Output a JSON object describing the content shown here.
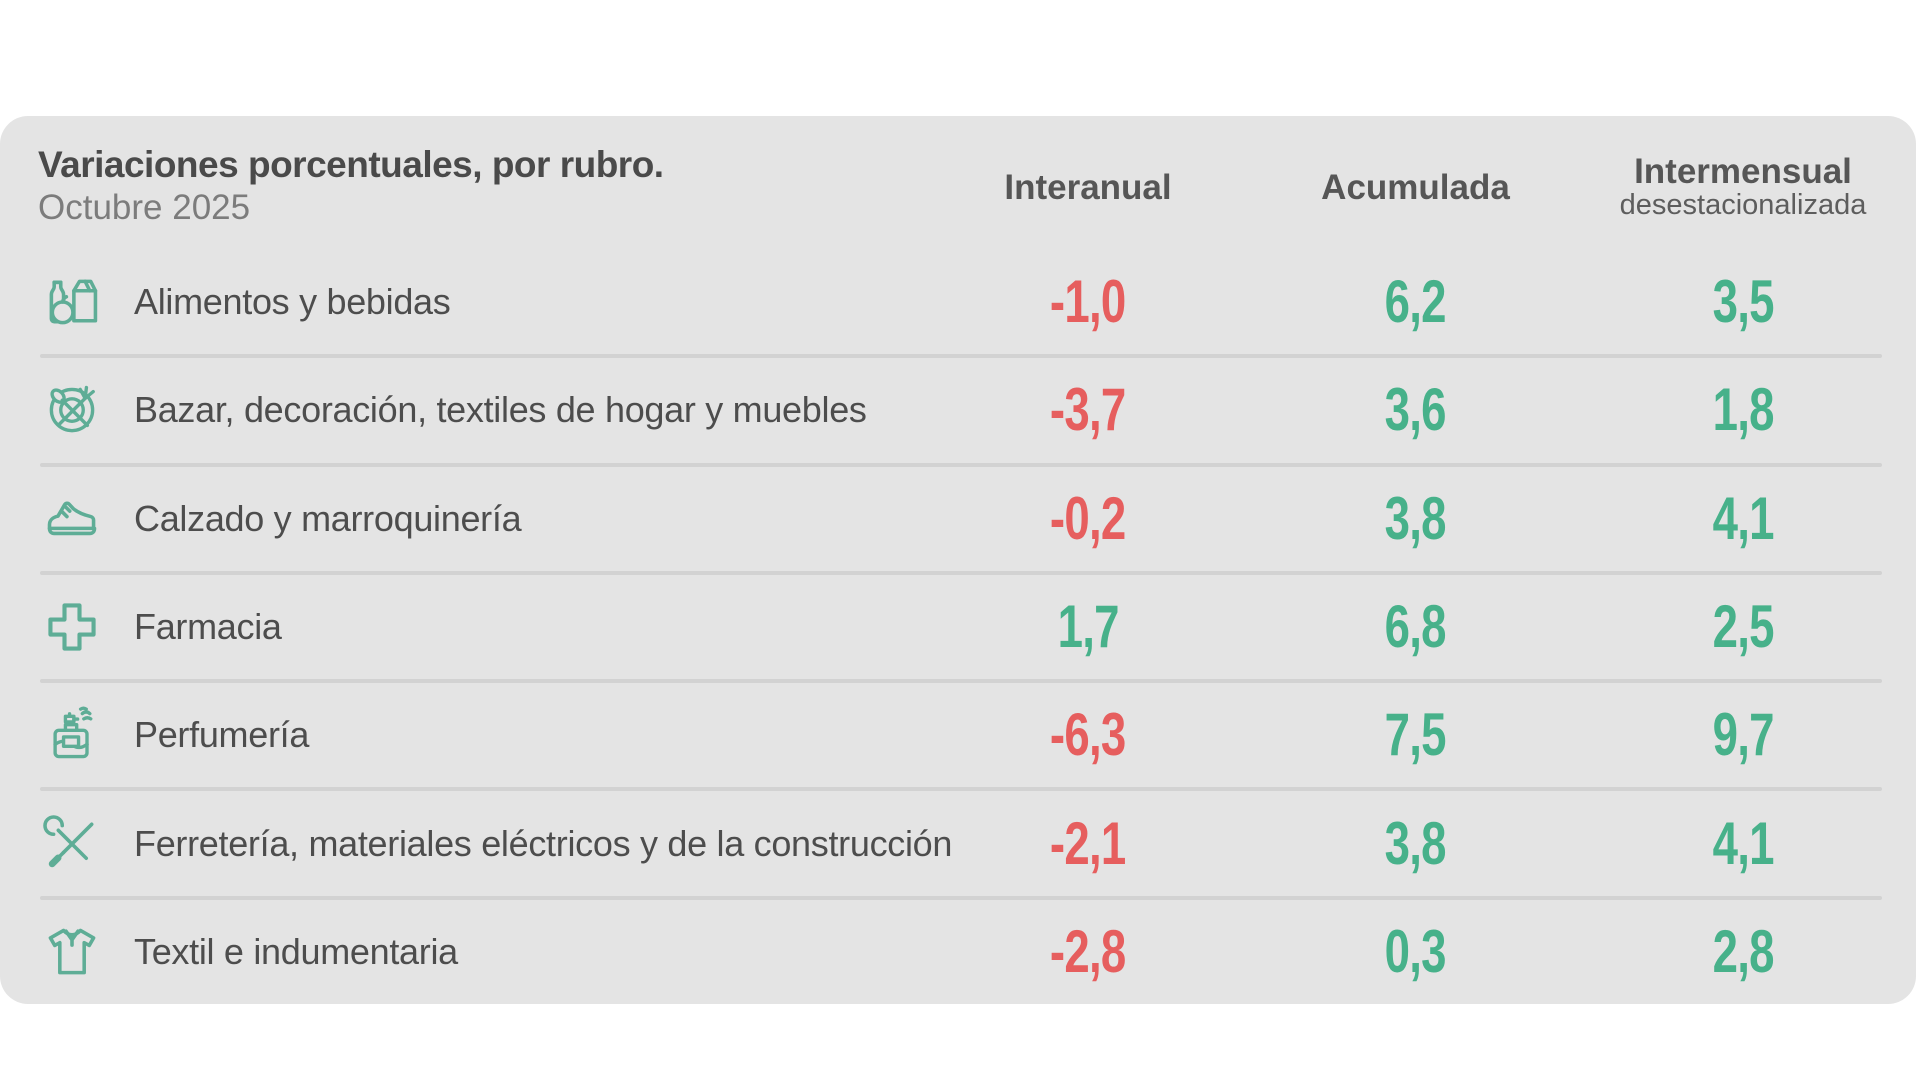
{
  "header": {
    "title": "Variaciones porcentuales, por rubro.",
    "subtitle": "Octubre 2025",
    "columns": [
      {
        "key": "interanual",
        "label": "Interanual",
        "sublabel": ""
      },
      {
        "key": "acumulada",
        "label": "Acumulada",
        "sublabel": ""
      },
      {
        "key": "intermensual",
        "label": "Intermensual",
        "sublabel": "desestacionalizada"
      }
    ]
  },
  "colors": {
    "card_background": "#e4e4e4",
    "positive_value": "#47b18a",
    "negative_value": "#e65e5e",
    "icon_green": "#5ead96",
    "title_text": "#4a4a4a",
    "muted_text": "#7c7c7c",
    "header_text": "#565656",
    "label_text": "#4d4d4d",
    "divider": "#d2d2d2"
  },
  "chart_data": {
    "type": "table",
    "title": "Variaciones porcentuales, por rubro.",
    "subtitle": "Octubre 2025",
    "unit": "percent",
    "columns": [
      "Interanual",
      "Acumulada",
      "Intermensual desestacionalizada"
    ],
    "rows": [
      {
        "category": "Alimentos y bebidas",
        "icon": "groceries-icon",
        "values": [
          -1.0,
          6.2,
          3.5
        ],
        "display": [
          "-1,0",
          "6,2",
          "3,5"
        ]
      },
      {
        "category": "Bazar, decoración, textiles de hogar y muebles",
        "icon": "tableware-icon",
        "values": [
          -3.7,
          3.6,
          1.8
        ],
        "display": [
          "-3,7",
          "3,6",
          "1,8"
        ]
      },
      {
        "category": "Calzado y marroquinería",
        "icon": "sneaker-icon",
        "values": [
          -0.2,
          3.8,
          4.1
        ],
        "display": [
          "-0,2",
          "3,8",
          "4,1"
        ]
      },
      {
        "category": "Farmacia",
        "icon": "pharmacy-cross-icon",
        "values": [
          1.7,
          6.8,
          2.5
        ],
        "display": [
          "1,7",
          "6,8",
          "2,5"
        ]
      },
      {
        "category": "Perfumería",
        "icon": "perfume-icon",
        "values": [
          -6.3,
          7.5,
          9.7
        ],
        "display": [
          "-6,3",
          "7,5",
          "9,7"
        ]
      },
      {
        "category": "Ferretería, materiales eléctricos y de la construcción",
        "icon": "tools-icon",
        "values": [
          -2.1,
          3.8,
          4.1
        ],
        "display": [
          "-2,1",
          "3,8",
          "4,1"
        ]
      },
      {
        "category": "Textil e indumentaria",
        "icon": "tshirt-icon",
        "values": [
          -2.8,
          0.3,
          2.8
        ],
        "display": [
          "-2,8",
          "0,3",
          "2,8"
        ]
      }
    ]
  }
}
